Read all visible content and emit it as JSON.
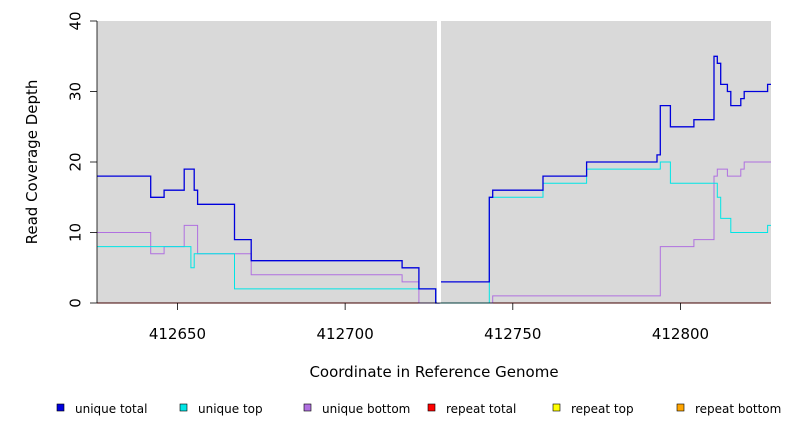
{
  "chart_data": {
    "type": "line",
    "step": true,
    "xlabel": "Coordinate in Reference Genome",
    "ylabel": "Read Coverage Depth",
    "xlim": [
      412626,
      412827
    ],
    "ylim": [
      0,
      40
    ],
    "x_ticks": [
      412650,
      412700,
      412750,
      412800
    ],
    "y_ticks": [
      0,
      10,
      20,
      30,
      40
    ],
    "background": "#d9d9d9",
    "legend_position": "bottom",
    "gap_x": 412728,
    "series": [
      {
        "name": "unique total",
        "color": "#0000dd",
        "points": [
          [
            412626,
            18
          ],
          [
            412642,
            18
          ],
          [
            412642,
            15
          ],
          [
            412646,
            15
          ],
          [
            412646,
            16
          ],
          [
            412652,
            16
          ],
          [
            412652,
            19
          ],
          [
            412655,
            19
          ],
          [
            412655,
            16
          ],
          [
            412656,
            16
          ],
          [
            412656,
            14
          ],
          [
            412667,
            14
          ],
          [
            412667,
            9
          ],
          [
            412672,
            9
          ],
          [
            412672,
            6
          ],
          [
            412717,
            6
          ],
          [
            412717,
            5
          ],
          [
            412722,
            5
          ],
          [
            412722,
            2
          ],
          [
            412727,
            2
          ],
          [
            412727,
            0
          ],
          [
            412728,
            0
          ],
          [
            412728,
            3
          ],
          [
            412743,
            3
          ],
          [
            412743,
            15
          ],
          [
            412744,
            15
          ],
          [
            412744,
            16
          ],
          [
            412759,
            16
          ],
          [
            412759,
            18
          ],
          [
            412772,
            18
          ],
          [
            412772,
            20
          ],
          [
            412793,
            20
          ],
          [
            412793,
            21
          ],
          [
            412794,
            21
          ],
          [
            412794,
            28
          ],
          [
            412797,
            28
          ],
          [
            412797,
            25
          ],
          [
            412804,
            25
          ],
          [
            412804,
            26
          ],
          [
            412810,
            26
          ],
          [
            412810,
            35
          ],
          [
            412811,
            35
          ],
          [
            412811,
            34
          ],
          [
            412812,
            34
          ],
          [
            412812,
            31
          ],
          [
            412814,
            31
          ],
          [
            412814,
            30
          ],
          [
            412815,
            30
          ],
          [
            412815,
            28
          ],
          [
            412818,
            28
          ],
          [
            412818,
            29
          ],
          [
            412819,
            29
          ],
          [
            412819,
            30
          ],
          [
            412826,
            30
          ],
          [
            412826,
            31
          ],
          [
            412827,
            31
          ]
        ]
      },
      {
        "name": "unique top",
        "color": "#00e5e5",
        "points": [
          [
            412626,
            8
          ],
          [
            412652,
            8
          ],
          [
            412652,
            8
          ],
          [
            412654,
            8
          ],
          [
            412654,
            5
          ],
          [
            412655,
            5
          ],
          [
            412655,
            7
          ],
          [
            412667,
            7
          ],
          [
            412667,
            2
          ],
          [
            412722,
            2
          ],
          [
            412722,
            2
          ],
          [
            412727,
            2
          ],
          [
            412727,
            0
          ],
          [
            412728,
            0
          ],
          [
            412728,
            0
          ],
          [
            412743,
            0
          ],
          [
            412743,
            15
          ],
          [
            412759,
            15
          ],
          [
            412759,
            17
          ],
          [
            412772,
            17
          ],
          [
            412772,
            19
          ],
          [
            412794,
            19
          ],
          [
            412794,
            20
          ],
          [
            412797,
            20
          ],
          [
            412797,
            17
          ],
          [
            412810,
            17
          ],
          [
            412810,
            17
          ],
          [
            412811,
            17
          ],
          [
            412811,
            15
          ],
          [
            412812,
            15
          ],
          [
            412812,
            12
          ],
          [
            412815,
            12
          ],
          [
            412815,
            10
          ],
          [
            412826,
            10
          ],
          [
            412826,
            11
          ],
          [
            412827,
            11
          ]
        ]
      },
      {
        "name": "unique bottom",
        "color": "#b070e0",
        "points": [
          [
            412626,
            10
          ],
          [
            412642,
            10
          ],
          [
            412642,
            7
          ],
          [
            412646,
            7
          ],
          [
            412646,
            8
          ],
          [
            412652,
            8
          ],
          [
            412652,
            11
          ],
          [
            412656,
            11
          ],
          [
            412656,
            7
          ],
          [
            412672,
            7
          ],
          [
            412672,
            4
          ],
          [
            412717,
            4
          ],
          [
            412717,
            3
          ],
          [
            412722,
            3
          ],
          [
            412722,
            0
          ],
          [
            412744,
            0
          ],
          [
            412744,
            1
          ],
          [
            412794,
            1
          ],
          [
            412794,
            8
          ],
          [
            412804,
            8
          ],
          [
            412804,
            9
          ],
          [
            412810,
            9
          ],
          [
            412810,
            18
          ],
          [
            412811,
            18
          ],
          [
            412811,
            19
          ],
          [
            412814,
            19
          ],
          [
            412814,
            18
          ],
          [
            412818,
            18
          ],
          [
            412818,
            19
          ],
          [
            412819,
            19
          ],
          [
            412819,
            20
          ],
          [
            412827,
            20
          ]
        ]
      },
      {
        "name": "repeat total",
        "color": "#ff0000",
        "points": [
          [
            412626,
            0
          ],
          [
            412827,
            0
          ]
        ]
      },
      {
        "name": "repeat top",
        "color": "#ffff00",
        "points": [
          [
            412626,
            0
          ],
          [
            412827,
            0
          ]
        ]
      },
      {
        "name": "repeat bottom",
        "color": "#ffa500",
        "points": [
          [
            412626,
            0
          ],
          [
            412827,
            0
          ]
        ]
      }
    ]
  }
}
